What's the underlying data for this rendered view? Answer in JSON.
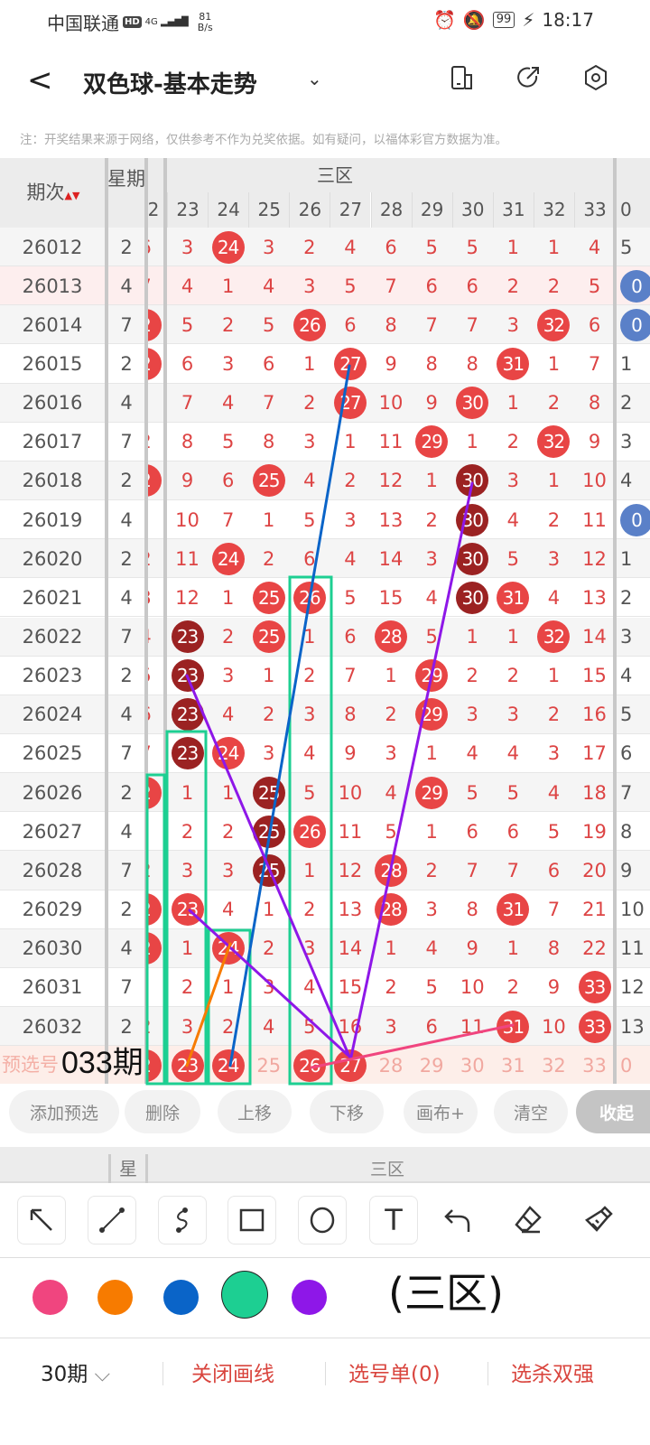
{
  "status": {
    "carrier": "中国联通",
    "hd": "HD",
    "network": "4G",
    "speed_value": "81",
    "speed_unit": "B/s",
    "battery": "99",
    "time": "18:17"
  },
  "nav": {
    "back": "<",
    "title": "双色球-基本走势",
    "dropdown": "⌄"
  },
  "note": "注：开奖结果来源于网络，仅供参考不作为兑奖依据。如有疑问，以福体彩官方数据为准。",
  "table": {
    "col_issue": "期次",
    "sort_icon": "▲▼",
    "col_week": "星期",
    "zone_label": "三区",
    "left_partial_header": "2",
    "numbers": [
      "23",
      "24",
      "25",
      "26",
      "27",
      "28",
      "29",
      "30",
      "31",
      "32",
      "33"
    ],
    "right_partial_header": "0",
    "rows": [
      {
        "issue": "26012",
        "week": "2",
        "p": "6",
        "c": [
          "3",
          "r:24",
          "3",
          "2",
          "4",
          "6",
          "5",
          "5",
          "1",
          "1",
          "4"
        ],
        "b": "5"
      },
      {
        "issue": "26013",
        "week": "4",
        "p": "7",
        "c": [
          "4",
          "1",
          "4",
          "3",
          "5",
          "7",
          "6",
          "6",
          "2",
          "2",
          "5"
        ],
        "b": "b:0"
      },
      {
        "issue": "26014",
        "week": "7",
        "p": "r:2",
        "c": [
          "5",
          "2",
          "5",
          "r:26",
          "6",
          "8",
          "7",
          "7",
          "3",
          "r:32",
          "6"
        ],
        "b": "b:0"
      },
      {
        "issue": "26015",
        "week": "2",
        "p": "r:2",
        "c": [
          "6",
          "3",
          "6",
          "1",
          "r:27",
          "9",
          "8",
          "8",
          "r:31",
          "1",
          "7"
        ],
        "b": "1"
      },
      {
        "issue": "26016",
        "week": "4",
        "p": "",
        "c": [
          "7",
          "4",
          "7",
          "2",
          "r:27",
          "10",
          "9",
          "r:30",
          "1",
          "2",
          "8"
        ],
        "b": "2"
      },
      {
        "issue": "26017",
        "week": "7",
        "p": "2",
        "c": [
          "8",
          "5",
          "8",
          "3",
          "1",
          "11",
          "r:29",
          "1",
          "2",
          "r:32",
          "9"
        ],
        "b": "3"
      },
      {
        "issue": "26018",
        "week": "2",
        "p": "r:2",
        "c": [
          "9",
          "6",
          "r:25",
          "4",
          "2",
          "12",
          "1",
          "d:30",
          "3",
          "1",
          "10"
        ],
        "b": "4"
      },
      {
        "issue": "26019",
        "week": "4",
        "p": "",
        "c": [
          "10",
          "7",
          "1",
          "5",
          "3",
          "13",
          "2",
          "d:30",
          "4",
          "2",
          "11"
        ],
        "b": "b:0"
      },
      {
        "issue": "26020",
        "week": "2",
        "p": "2",
        "c": [
          "11",
          "r:24",
          "2",
          "6",
          "4",
          "14",
          "3",
          "d:30",
          "5",
          "3",
          "12"
        ],
        "b": "1"
      },
      {
        "issue": "26021",
        "week": "4",
        "p": "3",
        "c": [
          "12",
          "1",
          "r:25",
          "r:26",
          "5",
          "15",
          "4",
          "d:30",
          "r:31",
          "4",
          "13"
        ],
        "b": "2"
      },
      {
        "issue": "26022",
        "week": "7",
        "p": "4",
        "c": [
          "d:23",
          "2",
          "r:25",
          "1",
          "6",
          "r:28",
          "5",
          "1",
          "1",
          "r:32",
          "14"
        ],
        "b": "3"
      },
      {
        "issue": "26023",
        "week": "2",
        "p": "5",
        "c": [
          "d:23",
          "3",
          "1",
          "2",
          "7",
          "1",
          "r:29",
          "2",
          "2",
          "1",
          "15"
        ],
        "b": "4"
      },
      {
        "issue": "26024",
        "week": "4",
        "p": "6",
        "c": [
          "d:23",
          "4",
          "2",
          "3",
          "8",
          "2",
          "r:29",
          "3",
          "3",
          "2",
          "16"
        ],
        "b": "5"
      },
      {
        "issue": "26025",
        "week": "7",
        "p": "7",
        "c": [
          "d:23",
          "r:24",
          "3",
          "4",
          "9",
          "3",
          "1",
          "4",
          "4",
          "3",
          "17"
        ],
        "b": "6"
      },
      {
        "issue": "26026",
        "week": "2",
        "p": "r:2",
        "c": [
          "1",
          "1",
          "d:25",
          "5",
          "10",
          "4",
          "r:29",
          "5",
          "5",
          "4",
          "18"
        ],
        "b": "7"
      },
      {
        "issue": "26027",
        "week": "4",
        "p": "",
        "c": [
          "2",
          "2",
          "d:25",
          "r:26",
          "11",
          "5",
          "1",
          "6",
          "6",
          "5",
          "19"
        ],
        "b": "8"
      },
      {
        "issue": "26028",
        "week": "7",
        "p": "2",
        "c": [
          "3",
          "3",
          "d:25",
          "1",
          "12",
          "r:28",
          "2",
          "7",
          "7",
          "6",
          "20"
        ],
        "b": "9"
      },
      {
        "issue": "26029",
        "week": "2",
        "p": "r:2",
        "c": [
          "r:23",
          "4",
          "1",
          "2",
          "13",
          "r:28",
          "3",
          "8",
          "r:31",
          "7",
          "21"
        ],
        "b": "10"
      },
      {
        "issue": "26030",
        "week": "4",
        "p": "r:2",
        "c": [
          "1",
          "r:24",
          "2",
          "3",
          "14",
          "1",
          "4",
          "9",
          "1",
          "8",
          "22"
        ],
        "b": "11"
      },
      {
        "issue": "26031",
        "week": "7",
        "p": "",
        "c": [
          "2",
          "1",
          "3",
          "4",
          "15",
          "2",
          "5",
          "10",
          "2",
          "9",
          "r:33"
        ],
        "b": "12"
      },
      {
        "issue": "26032",
        "week": "2",
        "p": "2",
        "c": [
          "3",
          "2",
          "4",
          "5",
          "16",
          "3",
          "6",
          "11",
          "r:31",
          "10",
          "r:33"
        ],
        "b": "13"
      }
    ],
    "preselect": {
      "label": "预选号",
      "p": "r:2",
      "c": [
        "r:23",
        "r:24",
        "25",
        "r:26",
        "r:27",
        "28",
        "29",
        "30",
        "31",
        "32",
        "33"
      ],
      "b": "0"
    }
  },
  "annotations": {
    "issue_text": "033期",
    "zone_text": "(三区)"
  },
  "drawing_colors": {
    "pink": "#f0457f",
    "orange": "#f77b00",
    "blue": "#0a64c8",
    "green": "#1dcf92",
    "purple": "#8e17e8"
  },
  "actions": [
    "添加预选",
    "删除",
    "上移",
    "下移",
    "画布+",
    "清空",
    "收起"
  ],
  "header2": {
    "week": "星",
    "zone": "三区"
  },
  "tools": [
    "arrow-tool",
    "line-tool",
    "curve-tool",
    "rectangle-tool",
    "circle-tool",
    "text-tool",
    "undo",
    "eraser",
    "clear-brush"
  ],
  "tool_text": "T",
  "selected_color": "green",
  "bottom": {
    "period": "30期",
    "period_chevron": "⌵",
    "close_draw": "关闭画线",
    "pick_list": "选号单(0)",
    "kill": "选杀双强"
  }
}
